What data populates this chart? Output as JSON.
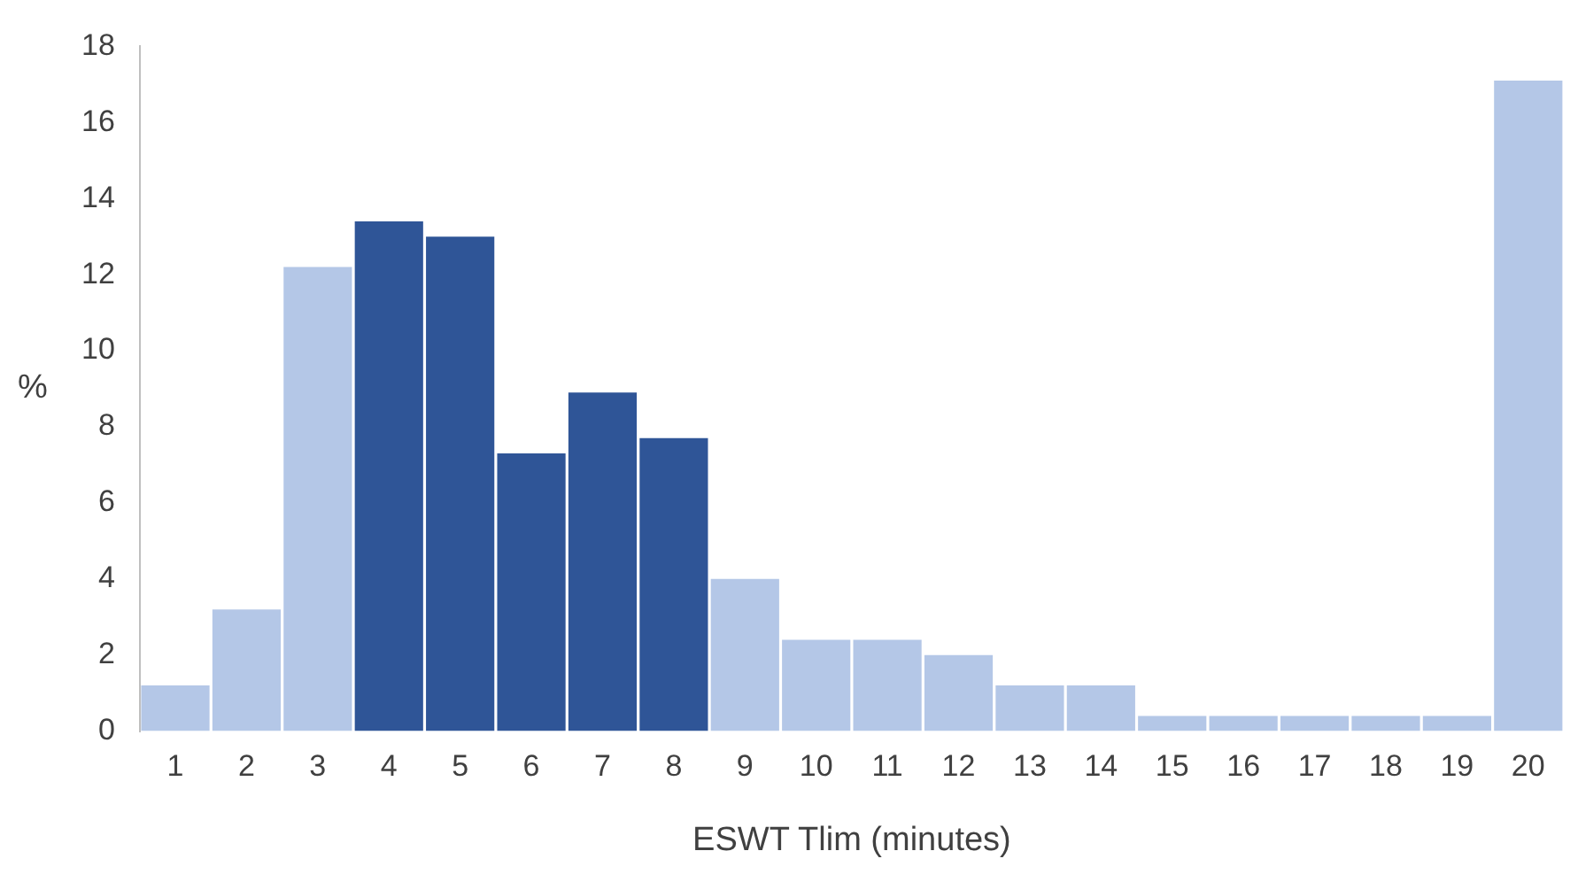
{
  "chart_data": {
    "type": "bar",
    "xlabel": "ESWT Tlim (minutes)",
    "ylabel": "%",
    "categories": [
      "1",
      "2",
      "3",
      "4",
      "5",
      "6",
      "7",
      "8",
      "9",
      "10",
      "11",
      "12",
      "13",
      "14",
      "15",
      "16",
      "17",
      "18",
      "19",
      "20"
    ],
    "values": [
      1.2,
      3.2,
      12.2,
      13.4,
      13.0,
      7.3,
      8.9,
      7.7,
      4.0,
      2.4,
      2.4,
      2.0,
      1.2,
      1.2,
      0.4,
      0.4,
      0.4,
      0.4,
      0.4,
      17.1
    ],
    "colors": [
      "#b4c7e7",
      "#b4c7e7",
      "#b4c7e7",
      "#2f5597",
      "#2f5597",
      "#2f5597",
      "#2f5597",
      "#2f5597",
      "#b4c7e7",
      "#b4c7e7",
      "#b4c7e7",
      "#b4c7e7",
      "#b4c7e7",
      "#b4c7e7",
      "#b4c7e7",
      "#b4c7e7",
      "#b4c7e7",
      "#b4c7e7",
      "#b4c7e7",
      "#b4c7e7"
    ],
    "ylim": [
      0,
      18
    ],
    "yticks": [
      0,
      2,
      4,
      6,
      8,
      10,
      12,
      14,
      16,
      18
    ],
    "grid": false,
    "legend": false
  }
}
